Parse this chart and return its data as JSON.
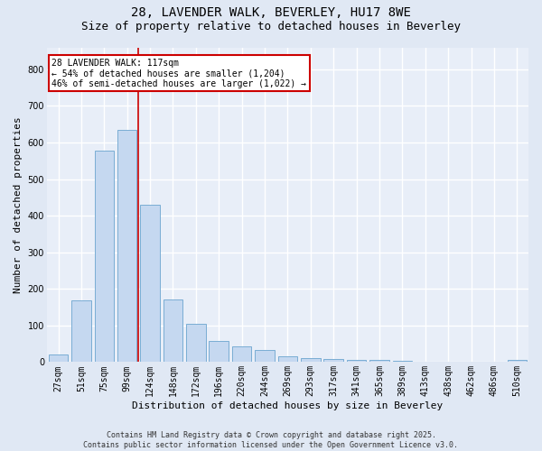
{
  "title_line1": "28, LAVENDER WALK, BEVERLEY, HU17 8WE",
  "title_line2": "Size of property relative to detached houses in Beverley",
  "xlabel": "Distribution of detached houses by size in Beverley",
  "ylabel": "Number of detached properties",
  "categories": [
    "27sqm",
    "51sqm",
    "75sqm",
    "99sqm",
    "124sqm",
    "148sqm",
    "172sqm",
    "196sqm",
    "220sqm",
    "244sqm",
    "269sqm",
    "293sqm",
    "317sqm",
    "341sqm",
    "365sqm",
    "389sqm",
    "413sqm",
    "438sqm",
    "462sqm",
    "486sqm",
    "510sqm"
  ],
  "values": [
    20,
    168,
    578,
    635,
    430,
    170,
    105,
    57,
    42,
    32,
    15,
    10,
    8,
    5,
    5,
    3,
    2,
    0,
    0,
    0,
    5
  ],
  "bar_color": "#c5d8f0",
  "bar_edge_color": "#7aadd4",
  "vline_x": 3.5,
  "vline_color": "#cc0000",
  "annotation_text": "28 LAVENDER WALK: 117sqm\n← 54% of detached houses are smaller (1,204)\n46% of semi-detached houses are larger (1,022) →",
  "annotation_box_color": "#ffffff",
  "annotation_box_edge_color": "#cc0000",
  "ylim": [
    0,
    860
  ],
  "yticks": [
    0,
    100,
    200,
    300,
    400,
    500,
    600,
    700,
    800
  ],
  "footer_line1": "Contains HM Land Registry data © Crown copyright and database right 2025.",
  "footer_line2": "Contains public sector information licensed under the Open Government Licence v3.0.",
  "background_color": "#e0e8f4",
  "plot_background_color": "#e8eef8",
  "grid_color": "#ffffff",
  "title1_fontsize": 10,
  "title2_fontsize": 9,
  "ylabel_fontsize": 8,
  "xlabel_fontsize": 8,
  "tick_fontsize": 7,
  "ann_fontsize": 7,
  "footer_fontsize": 6
}
